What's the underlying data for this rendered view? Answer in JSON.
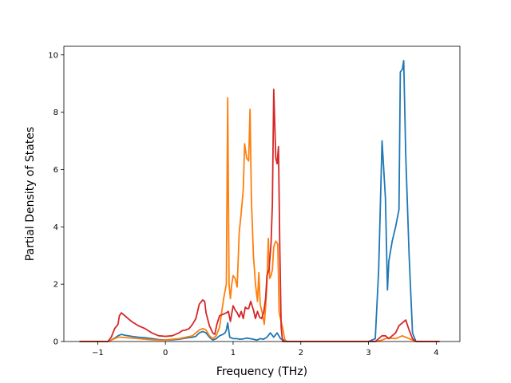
{
  "chart_data": {
    "type": "line",
    "title": "",
    "xlabel": "Frequency (THz)",
    "ylabel": "Partial Density of States",
    "xlim": [
      -1.5,
      4.35
    ],
    "ylim": [
      0,
      10.3
    ],
    "xticks": [
      -1,
      0,
      1,
      2,
      3,
      4
    ],
    "xtick_labels": [
      "−1",
      "0",
      "1",
      "2",
      "3",
      "4"
    ],
    "yticks": [
      0,
      2,
      4,
      6,
      8,
      10
    ],
    "ytick_labels": [
      "0",
      "2",
      "4",
      "6",
      "8",
      "10"
    ],
    "grid": false,
    "legend": false,
    "series": [
      {
        "color": "#1f77b4",
        "x": [
          -1.27,
          -0.85,
          -0.8,
          -0.75,
          -0.7,
          -0.65,
          -0.6,
          -0.5,
          -0.4,
          -0.3,
          -0.2,
          -0.1,
          0.0,
          0.1,
          0.2,
          0.3,
          0.4,
          0.45,
          0.5,
          0.55,
          0.6,
          0.65,
          0.7,
          0.75,
          0.8,
          0.85,
          0.88,
          0.9,
          0.92,
          0.95,
          1.0,
          1.05,
          1.1,
          1.15,
          1.2,
          1.25,
          1.3,
          1.35,
          1.4,
          1.45,
          1.5,
          1.55,
          1.6,
          1.65,
          1.7,
          1.75,
          1.8,
          1.85,
          2.0,
          2.5,
          3.0,
          3.1,
          3.15,
          3.2,
          3.25,
          3.28,
          3.3,
          3.35,
          3.4,
          3.45,
          3.47,
          3.5,
          3.52,
          3.55,
          3.6,
          3.65,
          3.7,
          4.05
        ],
        "y": [
          0,
          0,
          0.05,
          0.12,
          0.2,
          0.25,
          0.22,
          0.18,
          0.15,
          0.13,
          0.1,
          0.07,
          0.05,
          0.06,
          0.08,
          0.12,
          0.15,
          0.18,
          0.3,
          0.35,
          0.3,
          0.15,
          0.05,
          0.1,
          0.2,
          0.25,
          0.3,
          0.4,
          0.65,
          0.15,
          0.1,
          0.1,
          0.08,
          0.09,
          0.12,
          0.1,
          0.08,
          0.05,
          0.1,
          0.08,
          0.15,
          0.3,
          0.15,
          0.3,
          0.1,
          0.05,
          0,
          0,
          0,
          0,
          0,
          0.1,
          2.5,
          7.0,
          5.0,
          1.8,
          2.8,
          3.5,
          4.0,
          4.6,
          9.4,
          9.5,
          9.8,
          6.5,
          3.0,
          0.3,
          0,
          0
        ]
      },
      {
        "color": "#ff7f0e",
        "x": [
          -1.27,
          -0.85,
          -0.8,
          -0.75,
          -0.7,
          -0.65,
          -0.6,
          -0.5,
          -0.4,
          -0.3,
          -0.2,
          -0.1,
          0.0,
          0.1,
          0.2,
          0.3,
          0.4,
          0.45,
          0.5,
          0.55,
          0.6,
          0.65,
          0.7,
          0.75,
          0.8,
          0.83,
          0.86,
          0.9,
          0.92,
          0.94,
          0.96,
          0.98,
          1.0,
          1.03,
          1.06,
          1.09,
          1.12,
          1.15,
          1.17,
          1.2,
          1.23,
          1.25,
          1.27,
          1.3,
          1.33,
          1.36,
          1.38,
          1.4,
          1.43,
          1.46,
          1.48,
          1.5,
          1.52,
          1.54,
          1.56,
          1.58,
          1.6,
          1.63,
          1.66,
          1.68,
          1.7,
          1.73,
          1.76,
          1.78,
          1.85,
          2.5,
          3.1,
          3.2,
          3.25,
          3.3,
          3.4,
          3.5,
          3.55,
          3.6,
          3.65,
          3.7,
          4.05
        ],
        "y": [
          0,
          0,
          0.05,
          0.1,
          0.15,
          0.15,
          0.14,
          0.12,
          0.1,
          0.08,
          0.06,
          0.05,
          0.05,
          0.08,
          0.1,
          0.15,
          0.2,
          0.3,
          0.4,
          0.45,
          0.4,
          0.2,
          0.1,
          0.2,
          0.5,
          1.0,
          1.5,
          2.0,
          8.5,
          2.0,
          1.5,
          2.0,
          2.3,
          2.2,
          1.9,
          3.8,
          4.5,
          5.3,
          6.9,
          6.4,
          6.3,
          8.1,
          5.0,
          3.0,
          2.0,
          1.4,
          2.4,
          1.3,
          1.0,
          0.6,
          1.2,
          2.0,
          3.6,
          2.2,
          2.3,
          2.5,
          3.3,
          3.5,
          3.4,
          1.0,
          0.8,
          0.5,
          0.1,
          0,
          0,
          0,
          0,
          0.05,
          0.1,
          0.12,
          0.1,
          0.2,
          0.15,
          0.1,
          0.05,
          0,
          0
        ]
      },
      {
        "color": "#d62728",
        "x": [
          -1.27,
          -0.85,
          -0.8,
          -0.75,
          -0.7,
          -0.68,
          -0.65,
          -0.6,
          -0.55,
          -0.5,
          -0.4,
          -0.3,
          -0.2,
          -0.1,
          0.0,
          0.1,
          0.15,
          0.2,
          0.25,
          0.3,
          0.35,
          0.4,
          0.45,
          0.5,
          0.55,
          0.58,
          0.6,
          0.65,
          0.7,
          0.73,
          0.76,
          0.8,
          0.85,
          0.9,
          0.93,
          0.96,
          1.0,
          1.03,
          1.06,
          1.09,
          1.12,
          1.15,
          1.18,
          1.2,
          1.23,
          1.26,
          1.3,
          1.33,
          1.36,
          1.39,
          1.42,
          1.45,
          1.48,
          1.5,
          1.53,
          1.56,
          1.58,
          1.6,
          1.63,
          1.65,
          1.67,
          1.69,
          1.71,
          1.73,
          1.76,
          1.78,
          1.85,
          2.5,
          3.1,
          3.15,
          3.2,
          3.25,
          3.3,
          3.35,
          3.4,
          3.45,
          3.5,
          3.55,
          3.6,
          3.65,
          3.7,
          4.05
        ],
        "y": [
          0,
          0,
          0.15,
          0.45,
          0.6,
          0.9,
          1.0,
          0.9,
          0.8,
          0.7,
          0.55,
          0.45,
          0.3,
          0.2,
          0.18,
          0.2,
          0.25,
          0.3,
          0.38,
          0.4,
          0.45,
          0.6,
          0.8,
          1.3,
          1.45,
          1.4,
          1.0,
          0.55,
          0.3,
          0.25,
          0.6,
          0.9,
          0.95,
          1.0,
          1.05,
          0.7,
          1.25,
          1.1,
          1.0,
          0.85,
          1.05,
          0.8,
          1.2,
          1.15,
          1.15,
          1.4,
          1.1,
          0.8,
          1.05,
          0.85,
          0.8,
          1.0,
          1.5,
          2.3,
          2.5,
          3.4,
          4.8,
          8.8,
          6.4,
          6.2,
          6.8,
          3.2,
          0.5,
          0,
          0,
          0,
          0,
          0,
          0,
          0.1,
          0.2,
          0.2,
          0.1,
          0.2,
          0.3,
          0.55,
          0.65,
          0.75,
          0.4,
          0.1,
          0,
          0
        ]
      }
    ]
  }
}
